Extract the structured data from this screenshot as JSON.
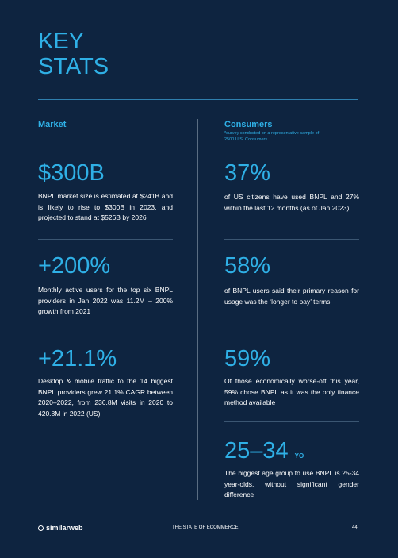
{
  "header": {
    "title": "KEY STATS"
  },
  "columns": [
    {
      "heading": "Market",
      "stats": [
        {
          "value": "$300B",
          "text": "BNPL market size is estimated at $241B and is likely to rise to $300B in 2023, and projected to stand at $526B by 2026"
        },
        {
          "value": "+200%",
          "text": "Monthly active users for the top six BNPL providers in Jan 2022 was 11.2M – 200% growth from 2021"
        },
        {
          "value": "+21.1%",
          "text": "Desktop & mobile traffic to the 14 biggest BNPL providers grew 21.1% CAGR between 2020–2022, from 236.8M visits in 2020 to 420.8M in 2022 (US)"
        }
      ]
    },
    {
      "heading": "Consumers",
      "note": "*survey conducted on a representative sample of 2500 U.S. Consumers",
      "stats": [
        {
          "value": "37%",
          "text": "of US citizens have used BNPL and 27% within the last 12 months (as of Jan 2023)"
        },
        {
          "value": "58%",
          "text": "of BNPL users said their primary reason for usage was the ‘longer to pay’ terms"
        },
        {
          "value": "59%",
          "text": "Of those economically worse-off this year, 59% chose BNPL as it was the only finance method available"
        },
        {
          "value": "25–34",
          "unit": "YO",
          "text": "The biggest age group to use BNPL is 25-34 year-olds, without significant gender difference"
        }
      ]
    }
  ],
  "footer": {
    "brand": "similarweb",
    "title": "THE STATE OF ECOMMERCE",
    "page": "44"
  }
}
